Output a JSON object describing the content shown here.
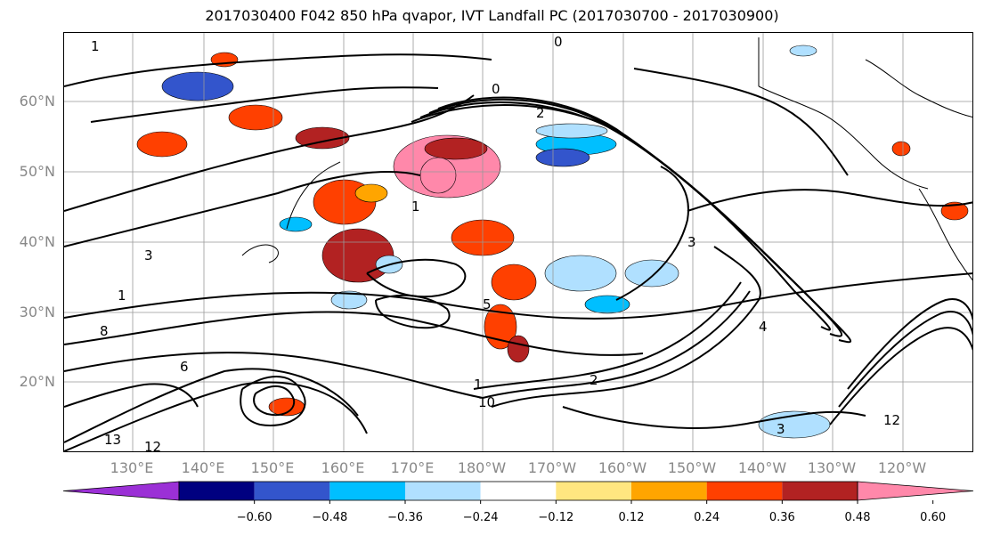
{
  "title": "2017030400 F042 850 hPa qvapor, IVT Landfall PC (2017030700 - 2017030900)",
  "map": {
    "lat_labels": [
      "60°N",
      "50°N",
      "40°N",
      "30°N",
      "20°N"
    ],
    "lon_labels": [
      "130°E",
      "140°E",
      "150°E",
      "160°E",
      "170°E",
      "180°W",
      "170°W",
      "160°W",
      "150°W",
      "140°W",
      "130°W",
      "120°W"
    ],
    "contour_labels": [
      "1",
      "0",
      "2",
      "1",
      "3",
      "1",
      "2",
      "1",
      "3",
      "4",
      "5",
      "6",
      "8",
      "10",
      "12",
      "12",
      "13",
      "0",
      "3"
    ]
  },
  "colorbar": {
    "tick_labels": [
      "−0.60",
      "−0.48",
      "−0.36",
      "−0.24",
      "−0.12",
      "0.12",
      "0.24",
      "0.36",
      "0.48",
      "0.60"
    ],
    "colors": [
      "#9b30d6",
      "#000080",
      "#3355cc",
      "#00bfff",
      "#b0e0ff",
      "#ffffff",
      "#ffe680",
      "#ffa500",
      "#ff4000",
      "#b22222",
      "#ff88aa"
    ]
  },
  "styles": {
    "gridline_color": "#999999",
    "contour_color": "#000000",
    "label_color": "#888888"
  }
}
